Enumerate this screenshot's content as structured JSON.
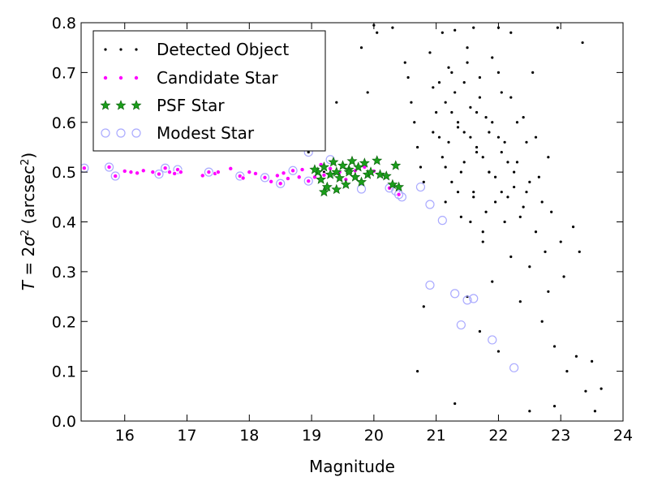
{
  "chart_data": {
    "type": "scatter",
    "title": "",
    "xlabel": "Magnitude",
    "ylabel": {
      "prefix": "T",
      "eq": " = 2",
      "sigma": "σ",
      "sq": "2",
      "unit_open": " (arcsec",
      "unit_sq": "2",
      "unit_close": ")"
    },
    "xlim": [
      15.3,
      24
    ],
    "ylim": [
      0.0,
      0.8
    ],
    "xticks": [
      "16",
      "17",
      "18",
      "19",
      "20",
      "21",
      "22",
      "23",
      "24"
    ],
    "yticks": [
      "0.0",
      "0.1",
      "0.2",
      "0.3",
      "0.4",
      "0.5",
      "0.6",
      "0.7",
      "0.8"
    ],
    "grid": false,
    "legend_position": "top-left",
    "series": [
      {
        "name": "Detected Object",
        "marker": "dot",
        "color": "#000000",
        "points": [
          [
            20.0,
            0.795
          ],
          [
            20.05,
            0.78
          ],
          [
            20.5,
            0.72
          ],
          [
            20.55,
            0.69
          ],
          [
            20.6,
            0.64
          ],
          [
            20.65,
            0.6
          ],
          [
            20.7,
            0.55
          ],
          [
            20.75,
            0.51
          ],
          [
            20.8,
            0.48
          ],
          [
            20.8,
            0.23
          ],
          [
            20.7,
            0.1
          ],
          [
            20.9,
            0.74
          ],
          [
            20.95,
            0.67
          ],
          [
            21.0,
            0.62
          ],
          [
            21.05,
            0.57
          ],
          [
            21.1,
            0.53
          ],
          [
            21.1,
            0.78
          ],
          [
            21.15,
            0.44
          ],
          [
            21.2,
            0.71
          ],
          [
            21.25,
            0.48
          ],
          [
            21.3,
            0.66
          ],
          [
            21.3,
            0.035
          ],
          [
            21.35,
            0.59
          ],
          [
            21.4,
            0.41
          ],
          [
            21.45,
            0.52
          ],
          [
            21.5,
            0.75
          ],
          [
            21.5,
            0.25
          ],
          [
            21.55,
            0.63
          ],
          [
            21.6,
            0.46
          ],
          [
            21.65,
            0.55
          ],
          [
            21.7,
            0.69
          ],
          [
            21.7,
            0.18
          ],
          [
            21.75,
            0.38
          ],
          [
            21.8,
            0.61
          ],
          [
            21.85,
            0.5
          ],
          [
            21.9,
            0.73
          ],
          [
            21.9,
            0.28
          ],
          [
            21.95,
            0.44
          ],
          [
            22.0,
            0.57
          ],
          [
            22.0,
            0.14
          ],
          [
            22.05,
            0.66
          ],
          [
            22.1,
            0.4
          ],
          [
            22.15,
            0.52
          ],
          [
            22.2,
            0.33
          ],
          [
            22.2,
            0.78
          ],
          [
            22.25,
            0.47
          ],
          [
            22.3,
            0.6
          ],
          [
            22.35,
            0.24
          ],
          [
            22.4,
            0.43
          ],
          [
            22.45,
            0.56
          ],
          [
            22.5,
            0.31
          ],
          [
            22.5,
            0.02
          ],
          [
            22.55,
            0.7
          ],
          [
            22.6,
            0.38
          ],
          [
            22.65,
            0.49
          ],
          [
            22.7,
            0.2
          ],
          [
            22.75,
            0.34
          ],
          [
            22.8,
            0.26
          ],
          [
            22.85,
            0.42
          ],
          [
            22.9,
            0.15
          ],
          [
            22.9,
            0.03
          ],
          [
            23.0,
            0.36
          ],
          [
            23.05,
            0.29
          ],
          [
            23.1,
            0.1
          ],
          [
            23.2,
            0.39
          ],
          [
            23.25,
            0.13
          ],
          [
            23.3,
            0.34
          ],
          [
            23.35,
            0.76
          ],
          [
            23.4,
            0.06
          ],
          [
            23.5,
            0.12
          ],
          [
            23.55,
            0.02
          ],
          [
            23.65,
            0.065
          ],
          [
            22.95,
            0.79
          ],
          [
            22.0,
            0.79
          ],
          [
            21.6,
            0.79
          ],
          [
            21.3,
            0.785
          ],
          [
            20.3,
            0.79
          ],
          [
            19.8,
            0.75
          ],
          [
            19.9,
            0.66
          ],
          [
            19.4,
            0.64
          ],
          [
            19.2,
            0.5
          ],
          [
            18.95,
            0.54
          ],
          [
            21.25,
            0.7
          ],
          [
            21.45,
            0.68
          ],
          [
            21.65,
            0.62
          ],
          [
            21.85,
            0.58
          ],
          [
            22.05,
            0.54
          ],
          [
            22.25,
            0.5
          ],
          [
            22.45,
            0.46
          ],
          [
            21.15,
            0.64
          ],
          [
            21.35,
            0.6
          ],
          [
            21.55,
            0.57
          ],
          [
            21.75,
            0.53
          ],
          [
            21.95,
            0.49
          ],
          [
            22.15,
            0.45
          ],
          [
            22.35,
            0.41
          ],
          [
            21.05,
            0.68
          ],
          [
            21.25,
            0.62
          ],
          [
            21.45,
            0.58
          ],
          [
            21.65,
            0.54
          ],
          [
            21.85,
            0.5
          ],
          [
            22.05,
            0.46
          ],
          [
            21.5,
            0.72
          ],
          [
            21.7,
            0.65
          ],
          [
            21.9,
            0.6
          ],
          [
            22.1,
            0.56
          ],
          [
            22.3,
            0.52
          ],
          [
            22.5,
            0.48
          ],
          [
            22.7,
            0.44
          ],
          [
            21.2,
            0.56
          ],
          [
            21.4,
            0.5
          ],
          [
            21.6,
            0.45
          ],
          [
            21.8,
            0.42
          ],
          [
            20.95,
            0.58
          ],
          [
            21.15,
            0.51
          ],
          [
            21.35,
            0.46
          ],
          [
            21.55,
            0.4
          ],
          [
            21.75,
            0.36
          ],
          [
            22.0,
            0.7
          ],
          [
            22.2,
            0.65
          ],
          [
            22.4,
            0.61
          ],
          [
            22.6,
            0.57
          ],
          [
            22.8,
            0.53
          ]
        ]
      },
      {
        "name": "Candidate Star",
        "marker": "circle-small",
        "color": "#ff00ff",
        "points": [
          [
            15.35,
            0.508
          ],
          [
            15.75,
            0.51
          ],
          [
            15.85,
            0.492
          ],
          [
            16.0,
            0.502
          ],
          [
            16.1,
            0.5
          ],
          [
            16.2,
            0.498
          ],
          [
            16.3,
            0.503
          ],
          [
            16.45,
            0.5
          ],
          [
            16.55,
            0.496
          ],
          [
            16.65,
            0.508
          ],
          [
            16.72,
            0.5
          ],
          [
            16.8,
            0.497
          ],
          [
            16.85,
            0.505
          ],
          [
            16.9,
            0.5
          ],
          [
            17.25,
            0.493
          ],
          [
            17.35,
            0.5
          ],
          [
            17.45,
            0.497
          ],
          [
            17.5,
            0.5
          ],
          [
            17.7,
            0.507
          ],
          [
            17.85,
            0.492
          ],
          [
            17.9,
            0.488
          ],
          [
            18.0,
            0.5
          ],
          [
            18.1,
            0.497
          ],
          [
            18.25,
            0.489
          ],
          [
            18.35,
            0.481
          ],
          [
            18.45,
            0.493
          ],
          [
            18.5,
            0.477
          ],
          [
            18.55,
            0.498
          ],
          [
            18.62,
            0.487
          ],
          [
            18.7,
            0.503
          ],
          [
            18.8,
            0.49
          ],
          [
            18.95,
            0.482
          ],
          [
            19.05,
            0.49
          ],
          [
            19.2,
            0.494
          ],
          [
            19.3,
            0.507
          ],
          [
            19.45,
            0.5
          ],
          [
            19.55,
            0.485
          ],
          [
            19.7,
            0.503
          ],
          [
            19.85,
            0.51
          ],
          [
            20.0,
            0.502
          ],
          [
            20.25,
            0.468
          ],
          [
            20.4,
            0.455
          ],
          [
            18.85,
            0.505
          ],
          [
            19.15,
            0.515
          ]
        ]
      },
      {
        "name": "PSF Star",
        "marker": "star",
        "color": "#1a9e1a",
        "points": [
          [
            19.1,
            0.5
          ],
          [
            19.15,
            0.485
          ],
          [
            19.2,
            0.51
          ],
          [
            19.25,
            0.47
          ],
          [
            19.3,
            0.495
          ],
          [
            19.35,
            0.52
          ],
          [
            19.4,
            0.5
          ],
          [
            19.45,
            0.488
          ],
          [
            19.5,
            0.513
          ],
          [
            19.55,
            0.475
          ],
          [
            19.6,
            0.505
          ],
          [
            19.65,
            0.522
          ],
          [
            19.7,
            0.49
          ],
          [
            19.75,
            0.51
          ],
          [
            19.8,
            0.48
          ],
          [
            19.85,
            0.518
          ],
          [
            19.9,
            0.495
          ],
          [
            19.95,
            0.5
          ],
          [
            20.05,
            0.523
          ],
          [
            20.1,
            0.495
          ],
          [
            20.2,
            0.492
          ],
          [
            20.3,
            0.475
          ],
          [
            20.35,
            0.513
          ],
          [
            20.4,
            0.47
          ],
          [
            19.4,
            0.465
          ],
          [
            19.2,
            0.46
          ],
          [
            19.6,
            0.5
          ],
          [
            19.05,
            0.505
          ]
        ]
      },
      {
        "name": "Modest Star",
        "marker": "circle-large",
        "color": "#aaaaff",
        "points": [
          [
            15.35,
            0.508
          ],
          [
            15.75,
            0.51
          ],
          [
            15.85,
            0.492
          ],
          [
            16.55,
            0.496
          ],
          [
            16.65,
            0.508
          ],
          [
            16.85,
            0.505
          ],
          [
            17.35,
            0.5
          ],
          [
            17.85,
            0.492
          ],
          [
            18.25,
            0.489
          ],
          [
            18.5,
            0.477
          ],
          [
            18.7,
            0.503
          ],
          [
            18.95,
            0.482
          ],
          [
            18.95,
            0.54
          ],
          [
            19.3,
            0.525
          ],
          [
            19.8,
            0.466
          ],
          [
            20.25,
            0.468
          ],
          [
            20.35,
            0.462
          ],
          [
            20.4,
            0.455
          ],
          [
            20.45,
            0.45
          ],
          [
            20.75,
            0.47
          ],
          [
            20.9,
            0.435
          ],
          [
            21.1,
            0.403
          ],
          [
            20.9,
            0.273
          ],
          [
            21.3,
            0.256
          ],
          [
            21.5,
            0.243
          ],
          [
            21.6,
            0.246
          ],
          [
            21.4,
            0.193
          ],
          [
            21.9,
            0.163
          ],
          [
            22.25,
            0.107
          ]
        ]
      }
    ]
  }
}
